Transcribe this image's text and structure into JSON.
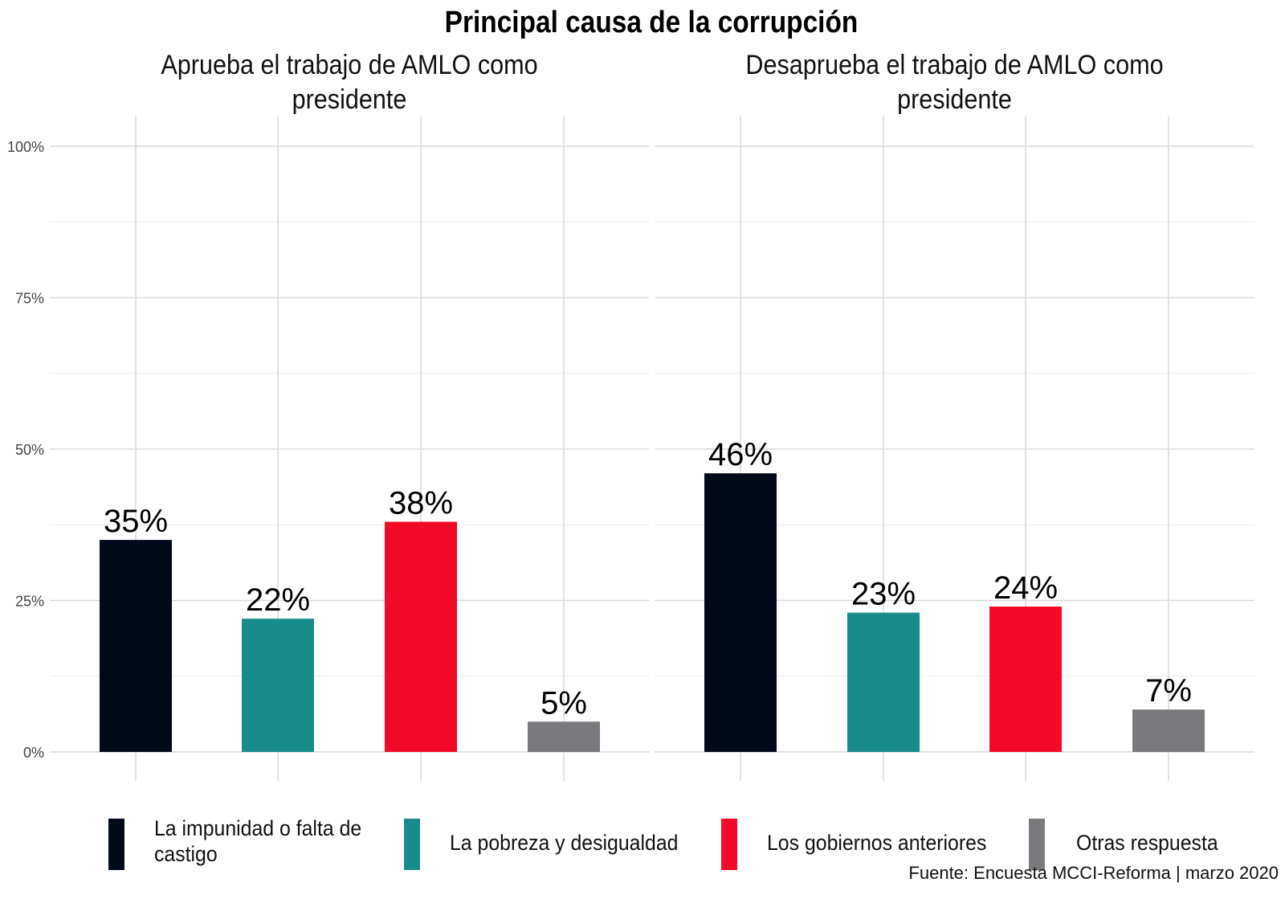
{
  "chart_data": {
    "type": "bar",
    "title": "Principal causa de la corrupción",
    "caption": "Fuente: Encuesta MCCI-Reforma | marzo 2020",
    "ylim": [
      0,
      100
    ],
    "yticks": [
      0,
      25,
      50,
      75,
      100
    ],
    "ytick_labels": [
      "0%",
      "25%",
      "50%",
      "75%",
      "100%"
    ],
    "grid": true,
    "legend_position": "bottom",
    "categories": [
      "La impunidad o falta de castigo",
      "La pobreza y desigualdad",
      "Los gobiernos anteriores",
      "Otras respuesta"
    ],
    "legend_labels": [
      [
        "La impunidad o falta de",
        "castigo"
      ],
      [
        "La pobreza y desigualdad"
      ],
      [
        "Los gobiernos anteriores"
      ],
      [
        "Otras respuesta"
      ]
    ],
    "colors": [
      "#020a1a",
      "#188c8a",
      "#f20a28",
      "#7a7a7e"
    ],
    "panels": [
      {
        "title": [
          "Aprueba el trabajo de AMLO como",
          "presidente"
        ],
        "values": [
          35,
          22,
          38,
          5
        ],
        "labels": [
          "35%",
          "22%",
          "38%",
          "5%"
        ]
      },
      {
        "title": [
          "Desaprueba el trabajo de AMLO como",
          "presidente"
        ],
        "values": [
          46,
          23,
          24,
          7
        ],
        "labels": [
          "46%",
          "23%",
          "24%",
          "7%"
        ]
      }
    ]
  }
}
